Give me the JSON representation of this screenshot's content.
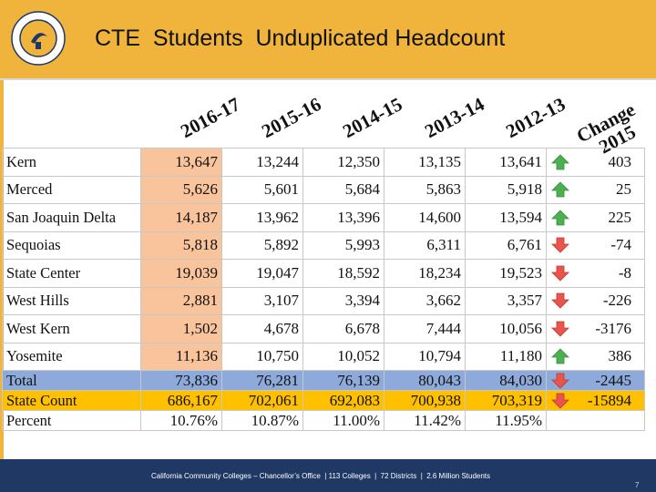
{
  "slide": {
    "title": "CTE  Students  Unduplicated Headcount",
    "page_number": "7",
    "footer": "California Community Colleges – Chancellor’s Office  | 113 Colleges  |  72 Districts  |  2.6 Million Students"
  },
  "logo": {
    "name": "california-community-colleges-seal",
    "text": "CALIFORNIA COMMUNITY COLLEGES"
  },
  "colors": {
    "header_bg": "#f0b43c",
    "footer_bg": "#1f3864",
    "current_year_col": "#f9c49c",
    "total_row": "#8eaadb",
    "state_row": "#ffc000",
    "up_arrow": "#4caf50",
    "down_arrow": "#e8554e"
  },
  "table": {
    "columns": [
      "2016-17",
      "2015-16",
      "2014-15",
      "2013-14",
      "2012-13"
    ],
    "change_header": [
      "Change",
      "2015"
    ],
    "rows": [
      {
        "name": "Kern",
        "values": [
          "13,647",
          "13,244",
          "12,350",
          "13,135",
          "13,641"
        ],
        "trend": "up",
        "change": "403"
      },
      {
        "name": "Merced",
        "values": [
          "5,626",
          "5,601",
          "5,684",
          "5,863",
          "5,918"
        ],
        "trend": "up",
        "change": "25"
      },
      {
        "name": "San Joaquin Delta",
        "values": [
          "14,187",
          "13,962",
          "13,396",
          "14,600",
          "13,594"
        ],
        "trend": "up",
        "change": "225"
      },
      {
        "name": "Sequoias",
        "values": [
          "5,818",
          "5,892",
          "5,993",
          "6,311",
          "6,761"
        ],
        "trend": "down",
        "change": "-74"
      },
      {
        "name": "State Center",
        "values": [
          "19,039",
          "19,047",
          "18,592",
          "18,234",
          "19,523"
        ],
        "trend": "down",
        "change": "-8"
      },
      {
        "name": "West Hills",
        "values": [
          "2,881",
          "3,107",
          "3,394",
          "3,662",
          "3,357"
        ],
        "trend": "down",
        "change": "-226"
      },
      {
        "name": "West Kern",
        "values": [
          "1,502",
          "4,678",
          "6,678",
          "7,444",
          "10,056"
        ],
        "trend": "down",
        "change": "-3176"
      },
      {
        "name": "Yosemite",
        "values": [
          "11,136",
          "10,750",
          "10,052",
          "10,794",
          "11,180"
        ],
        "trend": "up",
        "change": "386"
      }
    ],
    "total": {
      "name": "Total",
      "values": [
        "73,836",
        "76,281",
        "76,139",
        "80,043",
        "84,030"
      ],
      "trend": "down",
      "change": "-2445"
    },
    "state_count": {
      "name": "State Count",
      "values": [
        "686,167",
        "702,061",
        "692,083",
        "700,938",
        "703,319"
      ],
      "trend": "down",
      "change": "-15894"
    },
    "percent": {
      "name": "Percent",
      "values": [
        "10.76%",
        "10.87%",
        "11.00%",
        "11.42%",
        "11.95%"
      ]
    }
  }
}
